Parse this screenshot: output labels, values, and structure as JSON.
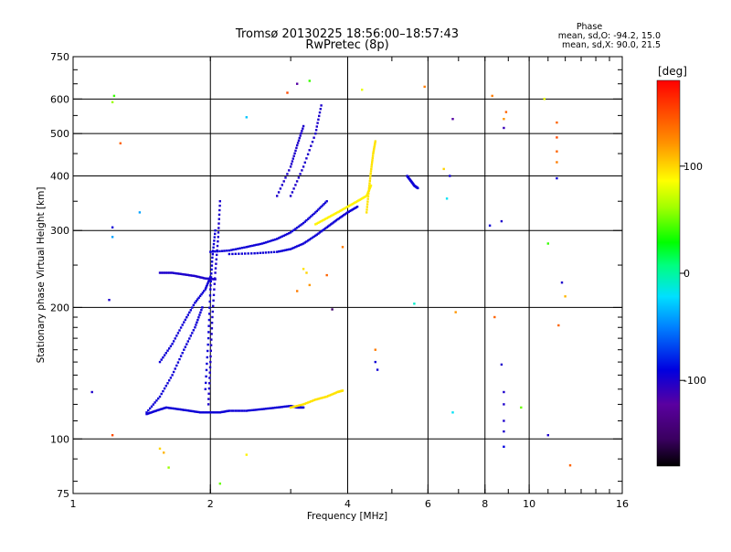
{
  "chart_data": {
    "type": "scatter",
    "title": "Tromsø 20130225 18:56:00–18:57:43",
    "subtitle": "RwPretec (8p)",
    "xlabel": "Frequency [MHz]",
    "ylabel": "Stationary phase Virtual Height [km]",
    "x_scale": "log",
    "y_scale": "log",
    "xlim": [
      1,
      16
    ],
    "ylim": [
      75,
      750
    ],
    "x_ticks": [
      1,
      2,
      4,
      6,
      8,
      10,
      16
    ],
    "x_tick_labels": [
      "1",
      "2",
      "4",
      "6",
      "8",
      "10",
      "16"
    ],
    "y_ticks": [
      75,
      100,
      200,
      300,
      400,
      500,
      600,
      750
    ],
    "y_tick_labels": [
      "75",
      "100",
      "200",
      "300",
      "400",
      "500",
      "600",
      "750"
    ],
    "grid": true,
    "x_gridlines": [
      2,
      4,
      6,
      8,
      10
    ],
    "y_gridlines": [
      100,
      200,
      300,
      400,
      500,
      600
    ],
    "stats": {
      "heading": "Phase",
      "o_line": "mean, sd,O: -94.2, 15.0",
      "x_line": "mean, sd,X:  90.0, 21.5"
    },
    "colorbar": {
      "label": "[deg]",
      "min": -180,
      "max": 180,
      "ticks": [
        100,
        0,
        -100
      ],
      "tick_labels": [
        "100",
        "0",
        "-100"
      ],
      "colormap": "black-purple-blue-cyan-green-yellow-orange-red"
    },
    "traces": [
      {
        "x": [
          1.45,
          1.52,
          1.6,
          1.7,
          1.8,
          1.9,
          2.0,
          2.1,
          2.2,
          2.4,
          2.6,
          2.8,
          3.0,
          3.1,
          3.2
        ],
        "y": [
          114,
          116,
          118,
          117,
          116,
          115,
          115,
          115,
          116,
          116,
          117,
          118,
          119,
          118,
          118
        ],
        "phase": -95
      },
      {
        "x": [
          3.0,
          3.2,
          3.4,
          3.6,
          3.8,
          3.9
        ],
        "y": [
          118,
          120,
          123,
          125,
          128,
          129
        ],
        "phase": 95
      },
      {
        "x": [
          1.45,
          1.55,
          1.65,
          1.75,
          1.85,
          1.92
        ],
        "y": [
          115,
          125,
          140,
          160,
          180,
          200
        ],
        "phase": -95
      },
      {
        "x": [
          1.55,
          1.65,
          1.75,
          1.85,
          1.95,
          2.0
        ],
        "y": [
          150,
          165,
          185,
          205,
          220,
          235
        ],
        "phase": -95
      },
      {
        "x": [
          1.98,
          2.0,
          2.02,
          2.05,
          2.08,
          2.1
        ],
        "y": [
          120,
          150,
          190,
          240,
          290,
          350
        ],
        "phase": -100
      },
      {
        "x": [
          1.95,
          1.98,
          2.0,
          2.02,
          2.05
        ],
        "y": [
          130,
          170,
          220,
          260,
          300
        ],
        "phase": -95
      },
      {
        "x": [
          2.0,
          2.2,
          2.4,
          2.6,
          2.8,
          3.0,
          3.2,
          3.4,
          3.6
        ],
        "y": [
          268,
          270,
          275,
          280,
          287,
          297,
          312,
          330,
          350
        ],
        "phase": -95
      },
      {
        "x": [
          2.2,
          2.5,
          2.8,
          3.0,
          3.2,
          3.4,
          3.6,
          3.8,
          4.0,
          4.2
        ],
        "y": [
          265,
          266,
          268,
          272,
          280,
          292,
          305,
          318,
          330,
          340
        ],
        "phase": -95
      },
      {
        "x": [
          3.0,
          3.2,
          3.4,
          3.5
        ],
        "y": [
          360,
          420,
          500,
          580
        ],
        "phase": -100
      },
      {
        "x": [
          2.8,
          3.0,
          3.1,
          3.2
        ],
        "y": [
          360,
          420,
          470,
          520
        ],
        "phase": -100
      },
      {
        "x": [
          3.4,
          3.6,
          3.8,
          4.0,
          4.2,
          4.4,
          4.5
        ],
        "y": [
          310,
          320,
          330,
          340,
          350,
          360,
          380
        ],
        "phase": 90
      },
      {
        "x": [
          4.4,
          4.45,
          4.5,
          4.55,
          4.6
        ],
        "y": [
          330,
          370,
          410,
          450,
          480
        ],
        "phase": 95
      },
      {
        "x": [
          1.55,
          1.65,
          1.75,
          1.85,
          1.95,
          2.05
        ],
        "y": [
          240,
          240,
          238,
          236,
          233,
          232
        ],
        "phase": -100
      },
      {
        "x": [
          5.4,
          5.5,
          5.6,
          5.7
        ],
        "y": [
          400,
          390,
          380,
          375
        ],
        "phase": -95
      }
    ],
    "scatter": [
      {
        "x": 1.1,
        "y": 128,
        "phase": -100
      },
      {
        "x": 1.2,
        "y": 208,
        "phase": -100
      },
      {
        "x": 1.22,
        "y": 102,
        "phase": 150
      },
      {
        "x": 1.22,
        "y": 590,
        "phase": 60
      },
      {
        "x": 1.23,
        "y": 610,
        "phase": 40
      },
      {
        "x": 1.22,
        "y": 305,
        "phase": -95
      },
      {
        "x": 1.22,
        "y": 290,
        "phase": -40
      },
      {
        "x": 1.27,
        "y": 475,
        "phase": 140
      },
      {
        "x": 1.4,
        "y": 330,
        "phase": -40
      },
      {
        "x": 1.55,
        "y": 95,
        "phase": 100
      },
      {
        "x": 1.58,
        "y": 93,
        "phase": 110
      },
      {
        "x": 1.62,
        "y": 86,
        "phase": 60
      },
      {
        "x": 2.1,
        "y": 79,
        "phase": 50
      },
      {
        "x": 2.4,
        "y": 92,
        "phase": 90
      },
      {
        "x": 2.4,
        "y": 545,
        "phase": -30
      },
      {
        "x": 2.95,
        "y": 620,
        "phase": 150
      },
      {
        "x": 3.1,
        "y": 650,
        "phase": -120
      },
      {
        "x": 3.3,
        "y": 660,
        "phase": 40
      },
      {
        "x": 3.2,
        "y": 245,
        "phase": 95
      },
      {
        "x": 3.25,
        "y": 240,
        "phase": 100
      },
      {
        "x": 3.1,
        "y": 218,
        "phase": 130
      },
      {
        "x": 3.3,
        "y": 225,
        "phase": 120
      },
      {
        "x": 3.6,
        "y": 237,
        "phase": 140
      },
      {
        "x": 3.7,
        "y": 198,
        "phase": -150
      },
      {
        "x": 3.9,
        "y": 275,
        "phase": 130
      },
      {
        "x": 4.3,
        "y": 630,
        "phase": 80
      },
      {
        "x": 4.6,
        "y": 160,
        "phase": 130
      },
      {
        "x": 4.6,
        "y": 150,
        "phase": -95
      },
      {
        "x": 4.65,
        "y": 144,
        "phase": -95
      },
      {
        "x": 5.6,
        "y": 204,
        "phase": -10
      },
      {
        "x": 5.9,
        "y": 640,
        "phase": 130
      },
      {
        "x": 6.5,
        "y": 415,
        "phase": 100
      },
      {
        "x": 6.6,
        "y": 355,
        "phase": -20
      },
      {
        "x": 6.7,
        "y": 400,
        "phase": -95
      },
      {
        "x": 6.8,
        "y": 540,
        "phase": -120
      },
      {
        "x": 6.9,
        "y": 195,
        "phase": 120
      },
      {
        "x": 6.8,
        "y": 115,
        "phase": -20
      },
      {
        "x": 8.2,
        "y": 308,
        "phase": -95
      },
      {
        "x": 8.3,
        "y": 610,
        "phase": 130
      },
      {
        "x": 8.4,
        "y": 190,
        "phase": 140
      },
      {
        "x": 8.7,
        "y": 315,
        "phase": -100
      },
      {
        "x": 8.7,
        "y": 148,
        "phase": -100
      },
      {
        "x": 8.8,
        "y": 128,
        "phase": -100
      },
      {
        "x": 8.8,
        "y": 120,
        "phase": -100
      },
      {
        "x": 8.8,
        "y": 110,
        "phase": -100
      },
      {
        "x": 8.8,
        "y": 104,
        "phase": -100
      },
      {
        "x": 8.8,
        "y": 96,
        "phase": -90
      },
      {
        "x": 8.8,
        "y": 540,
        "phase": 120
      },
      {
        "x": 8.9,
        "y": 560,
        "phase": 140
      },
      {
        "x": 8.8,
        "y": 515,
        "phase": -110
      },
      {
        "x": 9.6,
        "y": 118,
        "phase": 50
      },
      {
        "x": 10.8,
        "y": 600,
        "phase": 80
      },
      {
        "x": 11.0,
        "y": 280,
        "phase": 40
      },
      {
        "x": 11.0,
        "y": 102,
        "phase": -100
      },
      {
        "x": 11.5,
        "y": 530,
        "phase": 140
      },
      {
        "x": 11.5,
        "y": 490,
        "phase": 150
      },
      {
        "x": 11.5,
        "y": 455,
        "phase": 140
      },
      {
        "x": 11.5,
        "y": 430,
        "phase": 130
      },
      {
        "x": 11.5,
        "y": 395,
        "phase": -95
      },
      {
        "x": 11.6,
        "y": 182,
        "phase": 140
      },
      {
        "x": 11.8,
        "y": 228,
        "phase": -100
      },
      {
        "x": 12.0,
        "y": 212,
        "phase": 110
      },
      {
        "x": 12.3,
        "y": 87,
        "phase": 140
      }
    ]
  }
}
